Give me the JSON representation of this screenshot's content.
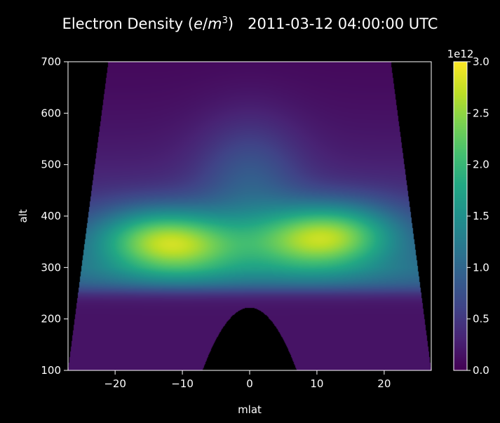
{
  "chart_data": {
    "type": "heatmap",
    "title": {
      "quantity": "Electron Density",
      "unit_numerator": "e",
      "unit_denominator": "m",
      "unit_exponent": "3",
      "timestamp": "2011-03-12 04:00:00 UTC"
    },
    "xlabel": "mlat",
    "ylabel": "alt",
    "xlim": [
      -27,
      27
    ],
    "ylim": [
      100,
      700
    ],
    "xticks": [
      -20,
      -10,
      0,
      10,
      20
    ],
    "xtick_labels": [
      "−20",
      "−10",
      "0",
      "10",
      "20"
    ],
    "yticks": [
      100,
      200,
      300,
      400,
      500,
      600,
      700
    ],
    "ytick_labels": [
      "100",
      "200",
      "300",
      "400",
      "500",
      "600",
      "700"
    ],
    "colormap": "viridis",
    "background_color": "#000000",
    "colorbar": {
      "min": 0.0,
      "max": 3.0,
      "multiplier_label": "1e12",
      "ticks": [
        0.0,
        0.5,
        1.0,
        1.5,
        2.0,
        2.5,
        3.0
      ],
      "tick_labels": [
        "0.0",
        "0.5",
        "1.0",
        "1.5",
        "2.0",
        "2.5",
        "3.0"
      ]
    },
    "field_description": {
      "coverage_edge_mlat_at_alt_700": 21,
      "coverage_edge_mlat_at_alt_100": 27,
      "peaks": [
        {
          "mlat": -12,
          "alt": 350,
          "value": 3.0
        },
        {
          "mlat": 11,
          "alt": 360,
          "value": 3.0
        }
      ],
      "trough_at_mlat_0_alt_350": 1.3,
      "no_data_dome": {
        "mlat_halfwidth_at_alt_100": 7,
        "apex_alt": 222
      }
    }
  }
}
